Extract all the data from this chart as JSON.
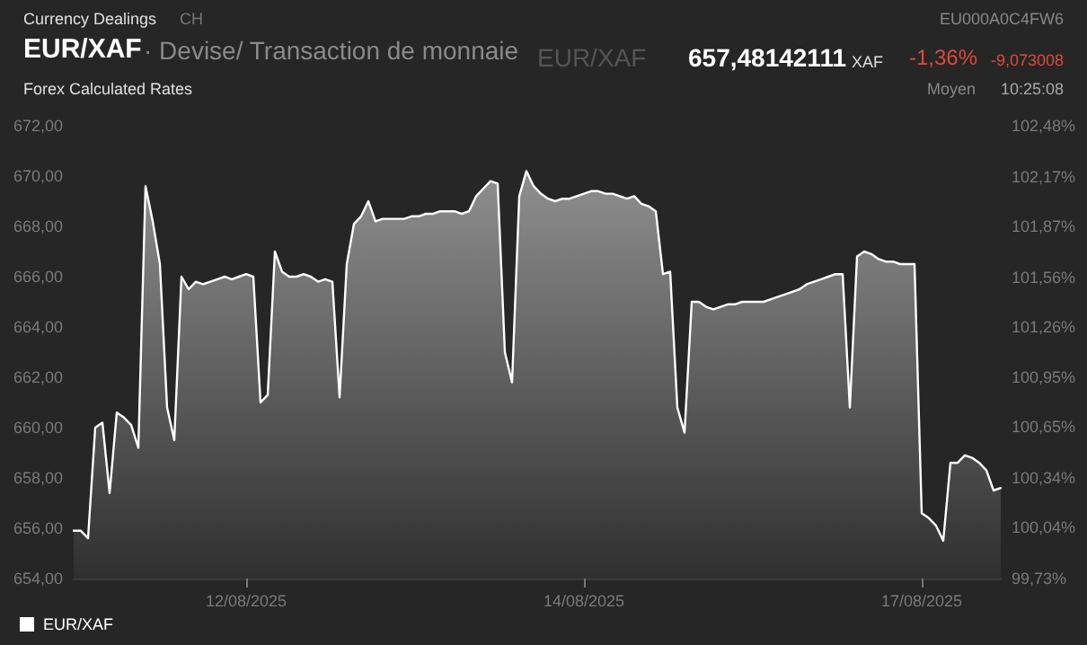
{
  "chart_data": {
    "type": "area",
    "title": "EUR/XAF",
    "subtitle": "· Devise/ Transaction de monnaie",
    "annotations": [
      "Currency Dealings",
      "CH",
      "EU000A0C4FW6",
      "EUR/XAF",
      "657,48142111",
      "XAF",
      "-1,36%",
      "-9,073008",
      "Forex Calculated Rates",
      "Moyen",
      "10:25:08"
    ],
    "categories": [
      null,
      null,
      null,
      null,
      null,
      null,
      null,
      null,
      null,
      null,
      null,
      null,
      null,
      null,
      null,
      null,
      null,
      null,
      null,
      null,
      null,
      null,
      null,
      null,
      "12/08/2025",
      null,
      null,
      null,
      null,
      null,
      null,
      null,
      null,
      null,
      null,
      null,
      null,
      null,
      null,
      null,
      null,
      null,
      null,
      null,
      null,
      null,
      null,
      null,
      null,
      null,
      null,
      null,
      null,
      null,
      null,
      null,
      null,
      null,
      null,
      null,
      null,
      null,
      null,
      null,
      null,
      null,
      null,
      null,
      null,
      null,
      null,
      "14/08/2025",
      null,
      null,
      null,
      null,
      null,
      null,
      null,
      null,
      null,
      null,
      null,
      null,
      null,
      null,
      null,
      null,
      null,
      null,
      null,
      null,
      null,
      null,
      null,
      null,
      null,
      null,
      null,
      null,
      null,
      null,
      null,
      null,
      null,
      null,
      null,
      null,
      null,
      null,
      null,
      null,
      null,
      null,
      null,
      null,
      null,
      null,
      "17/08/2025",
      null,
      null,
      null,
      null,
      null,
      null,
      null,
      null,
      null,
      null,
      null
    ],
    "series": [
      {
        "name": "EUR/XAF",
        "color": "#ffffff",
        "values": [
          655.9,
          655.9,
          655.6,
          660.0,
          660.2,
          657.4,
          660.6,
          660.4,
          660.1,
          659.2,
          669.6,
          668.2,
          666.5,
          660.8,
          659.5,
          666.0,
          665.5,
          665.8,
          665.7,
          665.8,
          665.9,
          666.0,
          665.9,
          666.0,
          666.1,
          666.0,
          661.0,
          661.3,
          667.0,
          666.2,
          666.0,
          666.0,
          666.1,
          666.0,
          665.8,
          665.9,
          665.8,
          661.2,
          666.5,
          668.1,
          668.4,
          669.0,
          668.2,
          668.3,
          668.3,
          668.3,
          668.3,
          668.4,
          668.4,
          668.5,
          668.5,
          668.6,
          668.6,
          668.6,
          668.5,
          668.6,
          669.2,
          669.5,
          669.8,
          669.7,
          663.0,
          661.8,
          669.2,
          670.2,
          669.6,
          669.3,
          669.1,
          669.0,
          669.1,
          669.1,
          669.2,
          669.3,
          669.4,
          669.4,
          669.3,
          669.3,
          669.2,
          669.1,
          669.2,
          668.9,
          668.8,
          668.6,
          666.1,
          666.2,
          660.8,
          659.8,
          665.0,
          665.0,
          664.8,
          664.7,
          664.8,
          664.9,
          664.9,
          665.0,
          665.0,
          665.0,
          665.0,
          665.1,
          665.2,
          665.3,
          665.4,
          665.5,
          665.7,
          665.8,
          665.9,
          666.0,
          666.1,
          666.1,
          660.8,
          666.8,
          667.0,
          666.9,
          666.7,
          666.6,
          666.6,
          666.5,
          666.5,
          666.5,
          656.6,
          656.4,
          656.1,
          655.5,
          658.6,
          658.6,
          658.9,
          658.8,
          658.6,
          658.3,
          657.5,
          657.6
        ]
      }
    ],
    "ylim": [
      654,
      672
    ],
    "yticks": [
      {
        "value": 654,
        "label": "654,00"
      },
      {
        "value": 656,
        "label": "656,00"
      },
      {
        "value": 658,
        "label": "658,00"
      },
      {
        "value": 660,
        "label": "660,00"
      },
      {
        "value": 662,
        "label": "662,00"
      },
      {
        "value": 664,
        "label": "664,00"
      },
      {
        "value": 666,
        "label": "666,00"
      },
      {
        "value": 668,
        "label": "668,00"
      },
      {
        "value": 670,
        "label": "670,00"
      },
      {
        "value": 672,
        "label": "672,00"
      }
    ],
    "y2lim": [
      99.73,
      102.48
    ],
    "y2ticks": [
      {
        "value": 99.73,
        "label": "99,73%"
      },
      {
        "value": 100.04,
        "label": "100,04%"
      },
      {
        "value": 100.34,
        "label": "100,34%"
      },
      {
        "value": 100.65,
        "label": "100,65%"
      },
      {
        "value": 100.95,
        "label": "100,95%"
      },
      {
        "value": 101.26,
        "label": "101,26%"
      },
      {
        "value": 101.56,
        "label": "101,56%"
      },
      {
        "value": 101.87,
        "label": "101,87%"
      },
      {
        "value": 102.17,
        "label": "102,17%"
      },
      {
        "value": 102.48,
        "label": "102,48%"
      }
    ],
    "grid": false,
    "legend": "bottom left",
    "marker": "none",
    "line_style": "solid"
  }
}
